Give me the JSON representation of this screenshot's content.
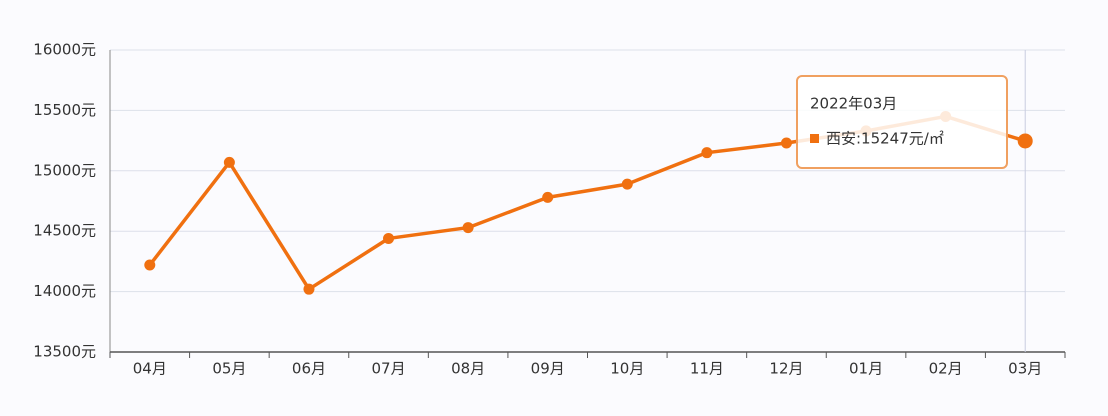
{
  "chart_data": {
    "type": "line",
    "categories": [
      "04月",
      "05月",
      "06月",
      "07月",
      "08月",
      "09月",
      "10月",
      "11月",
      "12月",
      "01月",
      "02月",
      "03月"
    ],
    "values": [
      14220,
      15070,
      14020,
      14440,
      14530,
      14780,
      14890,
      15150,
      15230,
      15330,
      15450,
      15247
    ],
    "color": "#f07010",
    "ylim": [
      13500,
      16000
    ],
    "yticks": [
      {
        "value": 13500,
        "label": "13500元"
      },
      {
        "value": 14000,
        "label": "14000元"
      },
      {
        "value": 14500,
        "label": "14500元"
      },
      {
        "value": 15000,
        "label": "15000元"
      },
      {
        "value": 15500,
        "label": "15500元"
      },
      {
        "value": 16000,
        "label": "16000元"
      }
    ],
    "grid": true,
    "tooltip": {
      "title": "2022年03月",
      "text": "西安:15247元/㎡"
    }
  }
}
